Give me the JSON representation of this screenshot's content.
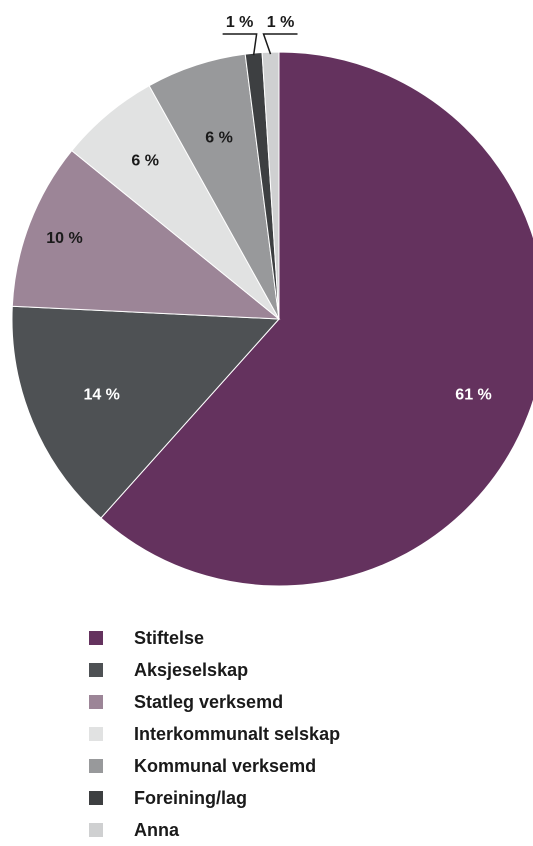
{
  "chart_data": {
    "type": "pie",
    "title": "",
    "unit": "%",
    "slices": [
      {
        "name": "Stiftelse",
        "value": 61,
        "label": "61 %",
        "color": "#64325e",
        "label_color": "#ffffff"
      },
      {
        "name": "Aksjeselskap",
        "value": 14,
        "label": "14 %",
        "color": "#4e5154",
        "label_color": "#ffffff"
      },
      {
        "name": "Statleg verksemd",
        "value": 10,
        "label": "10 %",
        "color": "#9c8597",
        "label_color": "#1a1a1a"
      },
      {
        "name": "Interkommunalt selskap",
        "value": 6,
        "label": "6 %",
        "color": "#e1e2e2",
        "label_color": "#1a1a1a"
      },
      {
        "name": "Kommunal verksemd",
        "value": 6,
        "label": "6 %",
        "color": "#98999b",
        "label_color": "#1a1a1a"
      },
      {
        "name": "Foreining/lag",
        "value": 1,
        "label": "1 %",
        "color": "#3d3f41",
        "label_color": "#1a1a1a"
      },
      {
        "name": "Anna",
        "value": 1,
        "label": "1 %",
        "color": "#cfd0d1",
        "label_color": "#1a1a1a"
      }
    ],
    "legend_position": "bottom"
  }
}
